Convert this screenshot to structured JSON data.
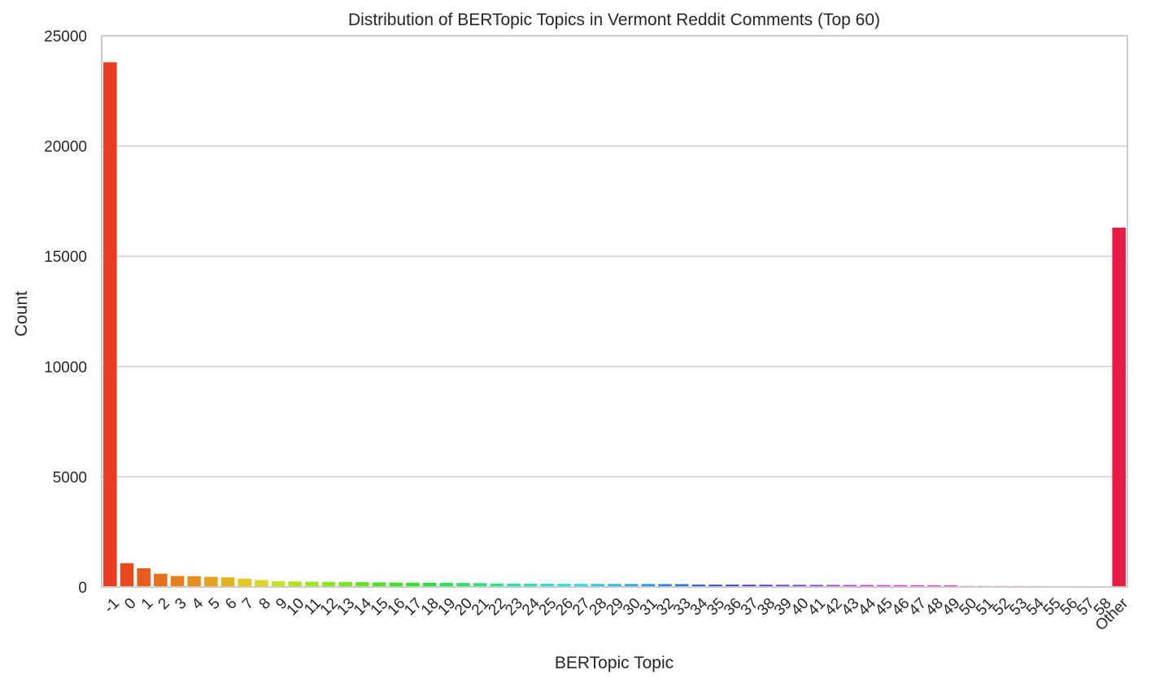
{
  "chart_data": {
    "type": "bar",
    "title": "Distribution of BERTopic Topics in Vermont Reddit Comments (Top 60)",
    "xlabel": "BERTopic Topic",
    "ylabel": "Count",
    "ylim": [
      0,
      25000
    ],
    "yticks": [
      0,
      5000,
      10000,
      15000,
      20000,
      25000
    ],
    "grid": "horizontal",
    "legend": "none",
    "categories": [
      "-1",
      "0",
      "1",
      "2",
      "3",
      "4",
      "5",
      "6",
      "7",
      "8",
      "9",
      "10",
      "11",
      "12",
      "13",
      "14",
      "15",
      "16",
      "17",
      "18",
      "19",
      "20",
      "21",
      "22",
      "23",
      "24",
      "25",
      "26",
      "27",
      "28",
      "29",
      "30",
      "31",
      "32",
      "33",
      "34",
      "35",
      "36",
      "37",
      "38",
      "39",
      "40",
      "41",
      "42",
      "43",
      "44",
      "45",
      "46",
      "47",
      "48",
      "49",
      "50",
      "51",
      "52",
      "53",
      "54",
      "55",
      "56",
      "57",
      "58",
      "Other"
    ],
    "values": [
      23800,
      1080,
      850,
      600,
      500,
      490,
      460,
      440,
      380,
      310,
      260,
      250,
      240,
      235,
      230,
      225,
      210,
      200,
      195,
      190,
      185,
      180,
      175,
      160,
      155,
      150,
      148,
      146,
      144,
      142,
      140,
      138,
      136,
      134,
      132,
      110,
      108,
      106,
      104,
      102,
      100,
      98,
      96,
      94,
      92,
      90,
      88,
      86,
      84,
      82,
      80,
      45,
      44,
      43,
      42,
      41,
      40,
      39,
      38,
      37,
      16300
    ],
    "colors": [
      "#ea3a1f",
      "#e84a1c",
      "#e85d1c",
      "#e76f1b",
      "#e7801a",
      "#e6901b",
      "#e6a21c",
      "#e5b21d",
      "#e4c81e",
      "#dbd61f",
      "#c8e21f",
      "#b2e220",
      "#a0e321",
      "#8ee322",
      "#79e423",
      "#64e325",
      "#4fe326",
      "#3be428",
      "#2ae42b",
      "#24e43d",
      "#25e551",
      "#25e464",
      "#26e477",
      "#26e48a",
      "#27e39c",
      "#28e3ae",
      "#29e3c0",
      "#2ae3d3",
      "#2bdfe3",
      "#2ccde3",
      "#2dbbe4",
      "#2ea9e4",
      "#2f97e4",
      "#3085e4",
      "#3173e4",
      "#3461e4",
      "#374fe4",
      "#3a40e4",
      "#4a3ee4",
      "#5c3de4",
      "#6e3de4",
      "#803ce4",
      "#923ce4",
      "#a43be4",
      "#b63be4",
      "#c83ae4",
      "#d939e4",
      "#e439dc",
      "#e438cb",
      "#e437b9",
      "#e436a7",
      "#e43595",
      "#e43483",
      "#e43371",
      "#e4325f",
      "#e4314d",
      "#e4303b",
      "#e32f2c",
      "#e32e2a",
      "#e32d28",
      "#e81b45"
    ]
  }
}
